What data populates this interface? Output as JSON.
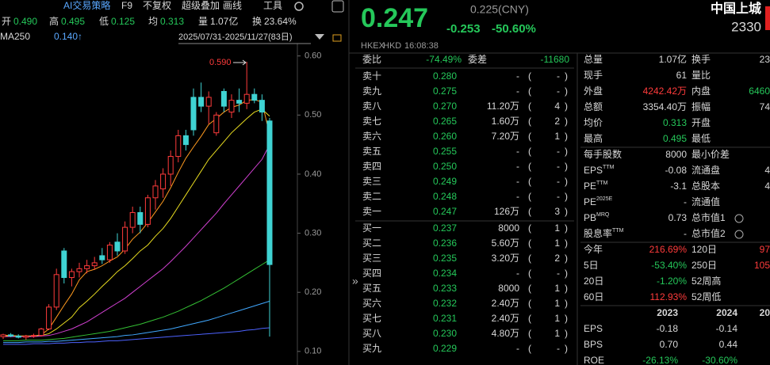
{
  "toolbar": [
    "AI交易策略",
    "F9",
    "不复权",
    "超级叠加",
    "画线",
    "工具"
  ],
  "quote_bar": [
    {
      "label": "开",
      "value": "0.490",
      "color": "#25c85a"
    },
    {
      "label": "高",
      "value": "0.495",
      "color": "#25c85a"
    },
    {
      "label": "低",
      "value": "0.125",
      "color": "#25c85a"
    },
    {
      "label": "均",
      "value": "0.313",
      "color": "#25c85a"
    },
    {
      "label": "量",
      "value": "1.07亿",
      "color": "#d8d8d8"
    },
    {
      "label": "换",
      "value": "23.64%",
      "color": "#d8d8d8"
    }
  ],
  "ma_label": "MA250",
  "ma_value": "0.140↑",
  "range_label": "2025/07/31-2025/11/27(83日)",
  "chart_data": {
    "type": "candlestick",
    "up_color": "#ff3b3b",
    "down_color": "#3fd3d3",
    "open": [
      0.125,
      0.128,
      0.126,
      0.124,
      0.126,
      0.127,
      0.138,
      0.175,
      0.27,
      0.225,
      0.235,
      0.24,
      0.245,
      0.262,
      0.255,
      0.285,
      0.27,
      0.31,
      0.335,
      0.315,
      0.36,
      0.375,
      0.4,
      0.43,
      0.465,
      0.53,
      0.53,
      0.515,
      0.47,
      0.54,
      0.505,
      0.525,
      0.52,
      0.535,
      0.525,
      0.49
    ],
    "high": [
      0.13,
      0.131,
      0.129,
      0.128,
      0.13,
      0.14,
      0.18,
      0.24,
      0.275,
      0.24,
      0.25,
      0.255,
      0.26,
      0.275,
      0.285,
      0.3,
      0.32,
      0.345,
      0.345,
      0.365,
      0.39,
      0.41,
      0.44,
      0.475,
      0.475,
      0.545,
      0.555,
      0.54,
      0.505,
      0.545,
      0.535,
      0.545,
      0.59,
      0.545,
      0.535,
      0.495
    ],
    "low": [
      0.121,
      0.124,
      0.122,
      0.12,
      0.123,
      0.125,
      0.136,
      0.17,
      0.215,
      0.21,
      0.225,
      0.232,
      0.238,
      0.248,
      0.25,
      0.262,
      0.265,
      0.3,
      0.3,
      0.31,
      0.34,
      0.36,
      0.38,
      0.42,
      0.44,
      0.465,
      0.505,
      0.485,
      0.465,
      0.505,
      0.495,
      0.505,
      0.51,
      0.52,
      0.49,
      0.125
    ],
    "close": [
      0.128,
      0.126,
      0.124,
      0.126,
      0.127,
      0.138,
      0.175,
      0.23,
      0.225,
      0.235,
      0.24,
      0.245,
      0.25,
      0.255,
      0.28,
      0.27,
      0.31,
      0.335,
      0.315,
      0.36,
      0.38,
      0.4,
      0.43,
      0.465,
      0.45,
      0.475,
      0.515,
      0.53,
      0.5,
      0.515,
      0.525,
      0.52,
      0.535,
      0.525,
      0.505,
      0.247
    ],
    "lines": [
      {
        "color": "#ff9a1f",
        "values": [
          0.127,
          0.127,
          0.126,
          0.126,
          0.126,
          0.128,
          0.138,
          0.158,
          0.178,
          0.197,
          0.221,
          0.235,
          0.239,
          0.245,
          0.253,
          0.26,
          0.273,
          0.29,
          0.302,
          0.318,
          0.336,
          0.354,
          0.377,
          0.403,
          0.427,
          0.446,
          0.464,
          0.484,
          0.494,
          0.505,
          0.513,
          0.517,
          0.525,
          0.526,
          0.522,
          0.467
        ]
      },
      {
        "color": "#e8dc20",
        "values": [
          0.126,
          0.126,
          0.126,
          0.126,
          0.126,
          0.127,
          0.13,
          0.138,
          0.148,
          0.158,
          0.174,
          0.185,
          0.197,
          0.21,
          0.222,
          0.235,
          0.245,
          0.257,
          0.27,
          0.28,
          0.295,
          0.308,
          0.325,
          0.345,
          0.365,
          0.385,
          0.405,
          0.425,
          0.44,
          0.455,
          0.47,
          0.482,
          0.494,
          0.505,
          0.51,
          0.498
        ]
      },
      {
        "color": "#d040d0",
        "values": [
          0.125,
          0.125,
          0.125,
          0.125,
          0.125,
          0.126,
          0.127,
          0.13,
          0.134,
          0.138,
          0.144,
          0.15,
          0.158,
          0.166,
          0.174,
          0.182,
          0.19,
          0.2,
          0.21,
          0.22,
          0.23,
          0.24,
          0.252,
          0.265,
          0.278,
          0.292,
          0.306,
          0.32,
          0.334,
          0.35,
          0.365,
          0.38,
          0.395,
          0.41,
          0.425,
          0.45
        ]
      },
      {
        "color": "#34c034",
        "values": [
          0.118,
          0.118,
          0.118,
          0.119,
          0.119,
          0.119,
          0.12,
          0.121,
          0.122,
          0.124,
          0.126,
          0.128,
          0.13,
          0.132,
          0.134,
          0.137,
          0.14,
          0.143,
          0.146,
          0.15,
          0.154,
          0.158,
          0.163,
          0.168,
          0.174,
          0.18,
          0.186,
          0.193,
          0.2,
          0.207,
          0.215,
          0.223,
          0.231,
          0.239,
          0.247,
          0.255
        ]
      },
      {
        "color": "#40a8ff",
        "values": [
          0.115,
          0.115,
          0.115,
          0.116,
          0.116,
          0.116,
          0.117,
          0.117,
          0.118,
          0.119,
          0.12,
          0.121,
          0.122,
          0.123,
          0.124,
          0.125,
          0.127,
          0.128,
          0.13,
          0.132,
          0.134,
          0.136,
          0.138,
          0.141,
          0.144,
          0.147,
          0.15,
          0.153,
          0.157,
          0.161,
          0.165,
          0.169,
          0.173,
          0.177,
          0.181,
          0.185
        ]
      },
      {
        "color": "#4d62ff",
        "values": [
          0.112,
          0.112,
          0.112,
          0.112,
          0.113,
          0.113,
          0.113,
          0.114,
          0.114,
          0.115,
          0.115,
          0.116,
          0.116,
          0.117,
          0.118,
          0.118,
          0.119,
          0.12,
          0.121,
          0.122,
          0.123,
          0.124,
          0.125,
          0.126,
          0.127,
          0.128,
          0.129,
          0.13,
          0.131,
          0.132,
          0.133,
          0.134,
          0.136,
          0.137,
          0.139,
          0.14
        ]
      }
    ],
    "annotation": "0.590",
    "ylim": [
      0.077,
      0.621
    ],
    "yticks": [
      {
        "value": 0.6,
        "label": "0.60"
      },
      {
        "value": 0.5,
        "label": "0.50"
      },
      {
        "value": 0.4,
        "label": "0.40"
      },
      {
        "value": 0.3,
        "label": "0.30"
      },
      {
        "value": 0.2,
        "label": "0.20"
      },
      {
        "value": 0.1,
        "label": "0.10"
      }
    ]
  },
  "header": {
    "price": "0.247",
    "prev": "0.225(CNY)",
    "change": "-0.253",
    "change_pct": "-50.60%",
    "name": "中国上城",
    "code": "2330",
    "exchange": "HKEX",
    "currency": "HKD",
    "time": "16:08:38"
  },
  "order_book": {
    "ratio_label": "委比",
    "ratio": "-74.49%",
    "diff_label": "委差",
    "diff": "-11680",
    "sell": [
      [
        "卖十",
        "0.280",
        "-",
        "-"
      ],
      [
        "卖九",
        "0.275",
        "-",
        "-"
      ],
      [
        "卖八",
        "0.270",
        "11.20万",
        "4"
      ],
      [
        "卖七",
        "0.265",
        "1.60万",
        "2"
      ],
      [
        "卖六",
        "0.260",
        "7.20万",
        "1"
      ],
      [
        "卖五",
        "0.255",
        "-",
        "-"
      ],
      [
        "卖四",
        "0.250",
        "-",
        "-"
      ],
      [
        "卖三",
        "0.249",
        "-",
        "-"
      ],
      [
        "卖二",
        "0.248",
        "-",
        "-"
      ],
      [
        "卖一",
        "0.247",
        "126万",
        "3"
      ]
    ],
    "buy": [
      [
        "买一",
        "0.237",
        "8000",
        "1"
      ],
      [
        "买二",
        "0.236",
        "5.60万",
        "1"
      ],
      [
        "买三",
        "0.235",
        "3.20万",
        "2"
      ],
      [
        "买四",
        "0.234",
        "-",
        "-"
      ],
      [
        "买五",
        "0.233",
        "8000",
        "1"
      ],
      [
        "买六",
        "0.232",
        "2.40万",
        "1"
      ],
      [
        "买七",
        "0.231",
        "2.40万",
        "1"
      ],
      [
        "买八",
        "0.230",
        "4.80万",
        "1"
      ],
      [
        "买九",
        "0.229",
        "-",
        "-"
      ]
    ]
  },
  "stats": [
    {
      "l": "总量",
      "v": "1.07亿",
      "l2": "换手",
      "v2": "23"
    },
    {
      "l": "现手",
      "v": "61",
      "l2": "量比"
    },
    {
      "l": "外盘",
      "v": "4242.42万",
      "vc": "#ff3b3b",
      "l2": "内盘",
      "v2": "6460",
      "v2c": "#25c85a"
    },
    {
      "l": "总额",
      "v": "3354.40万",
      "l2": "振幅",
      "v2": "74"
    },
    {
      "l": "均价",
      "v": "0.313",
      "vc": "#25c85a",
      "l2": "开盘"
    },
    {
      "l": "最高",
      "v": "0.495",
      "vc": "#25c85a",
      "l2": "最低"
    },
    {
      "l": "每手股数",
      "v": "8000",
      "l2": "最小价差"
    },
    {
      "l": "EPS",
      "sup": "TTM",
      "v": "-0.08",
      "l2": "流通盘",
      "v2": "4"
    },
    {
      "l": "PE",
      "sup": "TTM",
      "v": "-3.1",
      "l2": "总股本",
      "v2": "4"
    },
    {
      "l": "PE",
      "sup": "2025E",
      "v": "-",
      "l2": "流通值"
    },
    {
      "l": "PB",
      "sup": "MRQ",
      "v": "0.73",
      "l2": "总市值1",
      "info": true
    },
    {
      "l": "股息率",
      "sup": "TTM",
      "v": "-",
      "l2": "总市值2",
      "info": true
    },
    {
      "l": "今年",
      "v": "216.69%",
      "vc": "#ff3b3b",
      "l2": "120日",
      "v2": "97",
      "v2c": "#ff3b3b"
    },
    {
      "l": "5日",
      "v": "-53.40%",
      "vc": "#25c85a",
      "l2": "250日",
      "v2": "105",
      "v2c": "#ff3b3b"
    },
    {
      "l": "20日",
      "v": "-1.20%",
      "vc": "#25c85a",
      "l2": "52周高"
    },
    {
      "l": "60日",
      "v": "112.93%",
      "vc": "#ff3b3b",
      "l2": "52周低"
    }
  ],
  "financials": {
    "years": [
      "2023",
      "2024",
      "20"
    ],
    "rows": [
      [
        "EPS",
        "-0.18",
        "-0.14"
      ],
      [
        "BPS",
        "0.70",
        "0.44"
      ],
      [
        "ROE",
        "-26.13%",
        "-30.60%"
      ]
    ]
  }
}
